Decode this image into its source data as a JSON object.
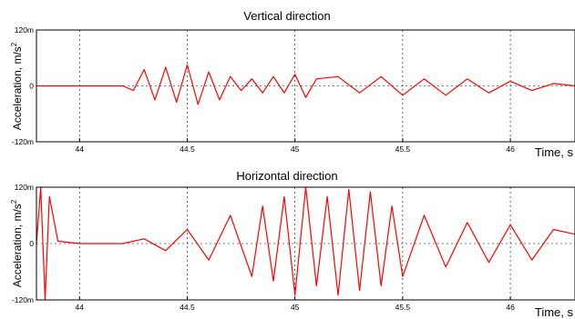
{
  "chart_data": [
    {
      "type": "line",
      "title": "Vertical direction",
      "xlabel": "Time, s",
      "ylabel": "Acceleration, m/s",
      "ylabel_superscript": "2",
      "xlim": [
        43.8,
        46.3
      ],
      "ylim": [
        -120,
        120
      ],
      "y_unit_suffix": "m",
      "x_ticks": [
        "44",
        "44.5",
        "45",
        "45.5",
        "46"
      ],
      "y_ticks": [
        "120m",
        "0",
        "-120m"
      ],
      "grid": true,
      "color": "#ff0000",
      "series": [
        {
          "x": [
            43.8,
            44.0,
            44.2,
            44.25,
            44.3,
            44.35,
            44.4,
            44.45,
            44.5,
            44.55,
            44.6,
            44.65,
            44.7,
            44.75,
            44.8,
            44.85,
            44.9,
            44.95,
            45.0,
            45.05,
            45.1,
            45.2,
            45.3,
            45.4,
            45.5,
            45.6,
            45.7,
            45.8,
            45.9,
            46.0,
            46.1,
            46.2,
            46.3
          ],
          "y": [
            0,
            0,
            0,
            -10,
            35,
            -30,
            40,
            -35,
            45,
            -40,
            30,
            -30,
            20,
            -10,
            15,
            -15,
            20,
            -15,
            25,
            -25,
            15,
            20,
            -15,
            20,
            -20,
            15,
            -20,
            15,
            -15,
            10,
            -10,
            5,
            0
          ]
        }
      ]
    },
    {
      "type": "line",
      "title": "Horizontal direction",
      "xlabel": "Time, s",
      "ylabel": "Acceleration, m/s",
      "ylabel_superscript": "2",
      "xlim": [
        43.8,
        46.3
      ],
      "ylim": [
        -120,
        120
      ],
      "y_unit_suffix": "m",
      "x_ticks": [
        "44",
        "44.5",
        "45",
        "45.5",
        "46"
      ],
      "y_ticks": [
        "120m",
        "0",
        "-120m"
      ],
      "grid": true,
      "color": "#ff0000",
      "series": [
        {
          "x": [
            43.8,
            43.82,
            43.84,
            43.86,
            43.9,
            44.0,
            44.2,
            44.3,
            44.4,
            44.5,
            44.6,
            44.7,
            44.8,
            44.85,
            44.9,
            44.95,
            45.0,
            45.05,
            45.1,
            45.15,
            45.2,
            45.25,
            45.3,
            45.35,
            45.4,
            45.45,
            45.5,
            45.6,
            45.7,
            45.8,
            45.9,
            46.0,
            46.1,
            46.2,
            46.3
          ],
          "y": [
            0,
            120,
            -120,
            100,
            5,
            0,
            0,
            10,
            -15,
            30,
            -35,
            60,
            -70,
            80,
            -80,
            100,
            -110,
            120,
            -90,
            100,
            -110,
            115,
            -100,
            110,
            -90,
            80,
            -70,
            60,
            -50,
            45,
            -40,
            40,
            -35,
            30,
            20
          ]
        }
      ]
    }
  ]
}
